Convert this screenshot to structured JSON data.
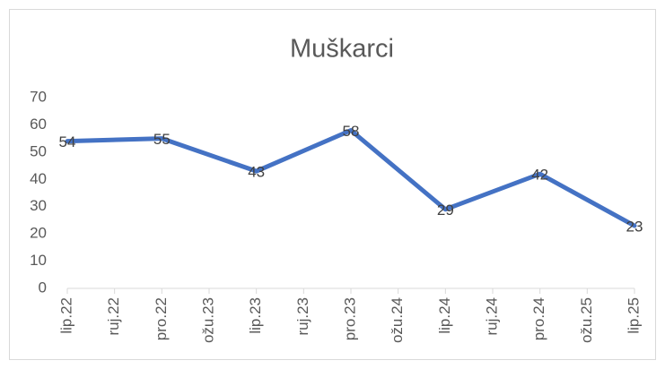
{
  "chart_data": {
    "type": "line",
    "title": "Muškarci",
    "x": [
      "2022-06",
      "2022-12",
      "2023-06",
      "2023-12",
      "2024-06",
      "2024-12",
      "2025-06"
    ],
    "series": [
      {
        "name": "Muškarci",
        "color": "#4472c4",
        "values": [
          54,
          55,
          43,
          58,
          29,
          42,
          23
        ]
      }
    ],
    "xlim": [
      "2022-06",
      "2025-06"
    ],
    "xticks": [
      {
        "value": "2022-06",
        "label": "lip.22"
      },
      {
        "value": "2022-09",
        "label": "ruj.22"
      },
      {
        "value": "2022-12",
        "label": "pro.22"
      },
      {
        "value": "2023-03",
        "label": "ožu.23"
      },
      {
        "value": "2023-06",
        "label": "lip.23"
      },
      {
        "value": "2023-09",
        "label": "ruj.23"
      },
      {
        "value": "2023-12",
        "label": "pro.23"
      },
      {
        "value": "2024-03",
        "label": "ožu.24"
      },
      {
        "value": "2024-06",
        "label": "lip.24"
      },
      {
        "value": "2024-09",
        "label": "ruj.24"
      },
      {
        "value": "2024-12",
        "label": "pro.24"
      },
      {
        "value": "2025-03",
        "label": "ožu.25"
      },
      {
        "value": "2025-06",
        "label": "lip.25"
      }
    ],
    "ylim": [
      0,
      70
    ],
    "yticks": [
      0,
      10,
      20,
      30,
      40,
      50,
      60,
      70
    ],
    "grid": false
  }
}
